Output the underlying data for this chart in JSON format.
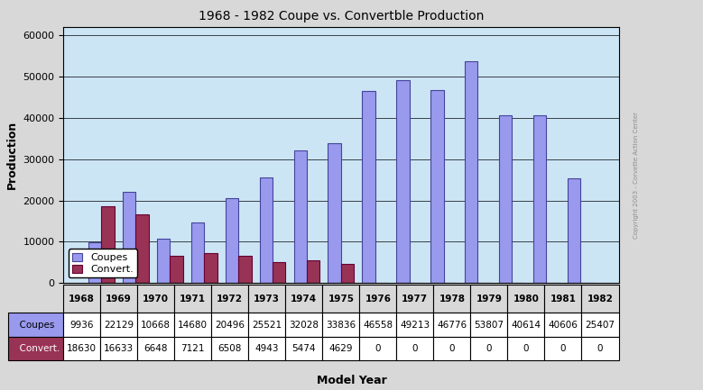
{
  "title": "1968 - 1982 Coupe vs. Convertble Production",
  "xlabel": "Model Year",
  "ylabel": "Production",
  "years": [
    "1968",
    "1969",
    "1970",
    "1971",
    "1972",
    "1973",
    "1974",
    "1975",
    "1976",
    "1977",
    "1978",
    "1979",
    "1980",
    "1981",
    "1982"
  ],
  "coupes": [
    9936,
    22129,
    10668,
    14680,
    20496,
    25521,
    32028,
    33836,
    46558,
    49213,
    46776,
    53807,
    40614,
    40606,
    25407
  ],
  "convertibles": [
    18630,
    16633,
    6648,
    7121,
    6508,
    4943,
    5474,
    4629,
    0,
    0,
    0,
    0,
    0,
    0,
    0
  ],
  "coupe_color": "#9999ee",
  "convert_color": "#993355",
  "coupe_edge": "#444499",
  "convert_edge": "#660033",
  "bg_plot": "#cce5f5",
  "bg_fig": "#d8d8d8",
  "ylim": [
    0,
    62000
  ],
  "yticks": [
    0,
    10000,
    20000,
    30000,
    40000,
    50000,
    60000
  ],
  "bar_width": 0.38,
  "legend_labels": [
    "Coupes",
    "Convert."
  ],
  "watermark": "Copyright 2003 - Corvette Action Center",
  "title_fontsize": 10,
  "axis_label_fontsize": 9,
  "tick_fontsize": 8,
  "table_fontsize": 7.5
}
